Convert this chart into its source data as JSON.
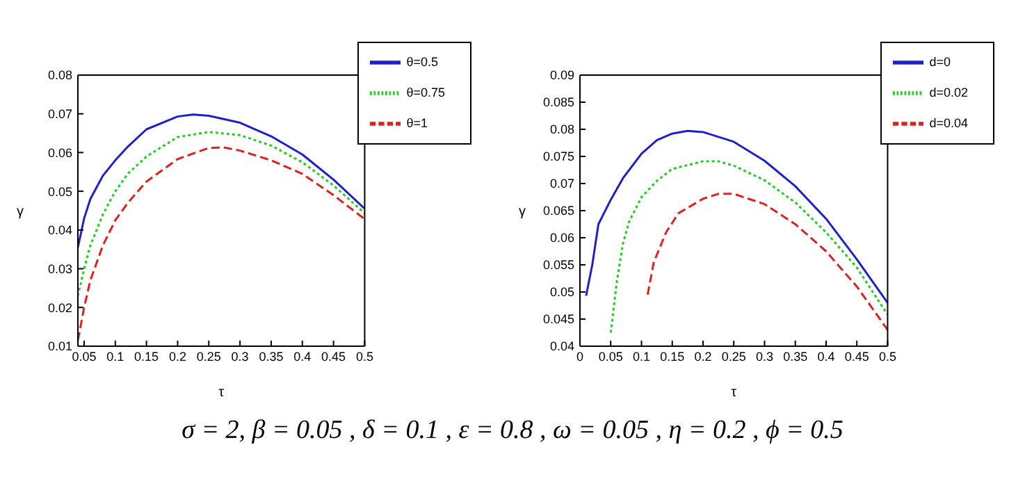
{
  "chart_data": [
    {
      "type": "line",
      "xlabel": "τ",
      "ylabel": "γ",
      "xlim": [
        0.04,
        0.5
      ],
      "xticks": [
        0.05,
        0.1,
        0.15,
        0.2,
        0.25,
        0.3,
        0.35,
        0.4,
        0.45,
        0.5
      ],
      "ylim": [
        0.01,
        0.08
      ],
      "yticks": [
        0.01,
        0.02,
        0.03,
        0.04,
        0.05,
        0.06,
        0.07,
        0.08
      ],
      "legend": "top right",
      "grid": false,
      "series": [
        {
          "name": "θ=0.5",
          "color": "#1f1fd0",
          "line_style": "solid",
          "x": [
            0.04,
            0.05,
            0.06,
            0.08,
            0.1,
            0.12,
            0.15,
            0.2,
            0.225,
            0.25,
            0.3,
            0.35,
            0.4,
            0.45,
            0.5
          ],
          "values": [
            0.0355,
            0.043,
            0.048,
            0.054,
            0.058,
            0.0615,
            0.066,
            0.0693,
            0.0698,
            0.0695,
            0.0677,
            0.0642,
            0.0595,
            0.053,
            0.0455
          ]
        },
        {
          "name": "θ=0.75",
          "color": "#20d020",
          "line_style": "dotted",
          "x": [
            0.04,
            0.05,
            0.06,
            0.08,
            0.1,
            0.12,
            0.15,
            0.2,
            0.25,
            0.3,
            0.35,
            0.4,
            0.45,
            0.5
          ],
          "values": [
            0.023,
            0.03,
            0.036,
            0.044,
            0.05,
            0.0545,
            0.059,
            0.064,
            0.0653,
            0.0645,
            0.0618,
            0.0575,
            0.0515,
            0.0443
          ]
        },
        {
          "name": "θ=1",
          "color": "#e02020",
          "line_style": "dashed",
          "x": [
            0.04,
            0.05,
            0.06,
            0.08,
            0.1,
            0.12,
            0.15,
            0.2,
            0.25,
            0.275,
            0.3,
            0.35,
            0.4,
            0.45,
            0.5
          ],
          "values": [
            0.0115,
            0.02,
            0.027,
            0.036,
            0.0425,
            0.047,
            0.0525,
            0.0583,
            0.0612,
            0.0613,
            0.0605,
            0.058,
            0.0545,
            0.049,
            0.0428
          ]
        }
      ],
      "annotations": [
        "σ = 2,  β = 0.05 ,  δ = 0.1 , ε = 0.8 ,  ω = 0.05 ,  η = 0.2 ,  ϕ = 0.5"
      ]
    },
    {
      "type": "line",
      "xlabel": "τ",
      "ylabel": "γ",
      "xlim": [
        0,
        0.5
      ],
      "xticks": [
        0,
        0.05,
        0.1,
        0.15,
        0.2,
        0.25,
        0.3,
        0.35,
        0.4,
        0.45,
        0.5
      ],
      "ylim": [
        0.04,
        0.09
      ],
      "yticks": [
        0.04,
        0.045,
        0.05,
        0.055,
        0.06,
        0.065,
        0.07,
        0.075,
        0.08,
        0.085,
        0.09
      ],
      "legend": "top right",
      "grid": false,
      "series": [
        {
          "name": "d=0",
          "color": "#1f1fd0",
          "line_style": "solid",
          "x": [
            0.01,
            0.02,
            0.03,
            0.05,
            0.07,
            0.1,
            0.125,
            0.15,
            0.175,
            0.2,
            0.25,
            0.3,
            0.35,
            0.4,
            0.45,
            0.5
          ],
          "values": [
            0.0493,
            0.055,
            0.0625,
            0.067,
            0.071,
            0.0755,
            0.078,
            0.0792,
            0.0797,
            0.0795,
            0.0777,
            0.0742,
            0.0695,
            0.0635,
            0.056,
            0.048
          ]
        },
        {
          "name": "d=0.02",
          "color": "#20d020",
          "line_style": "dotted",
          "x": [
            0.05,
            0.06,
            0.07,
            0.08,
            0.1,
            0.125,
            0.15,
            0.2,
            0.225,
            0.25,
            0.3,
            0.35,
            0.4,
            0.45,
            0.5
          ],
          "values": [
            0.0425,
            0.052,
            0.059,
            0.063,
            0.0675,
            0.0705,
            0.0727,
            0.0741,
            0.0741,
            0.0733,
            0.0706,
            0.0665,
            0.061,
            0.0545,
            0.0458
          ]
        },
        {
          "name": "d=0.04",
          "color": "#e02020",
          "line_style": "dashed",
          "x": [
            0.11,
            0.12,
            0.14,
            0.16,
            0.2,
            0.225,
            0.25,
            0.3,
            0.35,
            0.4,
            0.45,
            0.5
          ],
          "values": [
            0.0495,
            0.0555,
            0.061,
            0.0645,
            0.0672,
            0.0681,
            0.0681,
            0.0662,
            0.0625,
            0.0575,
            0.051,
            0.043
          ]
        }
      ]
    }
  ]
}
